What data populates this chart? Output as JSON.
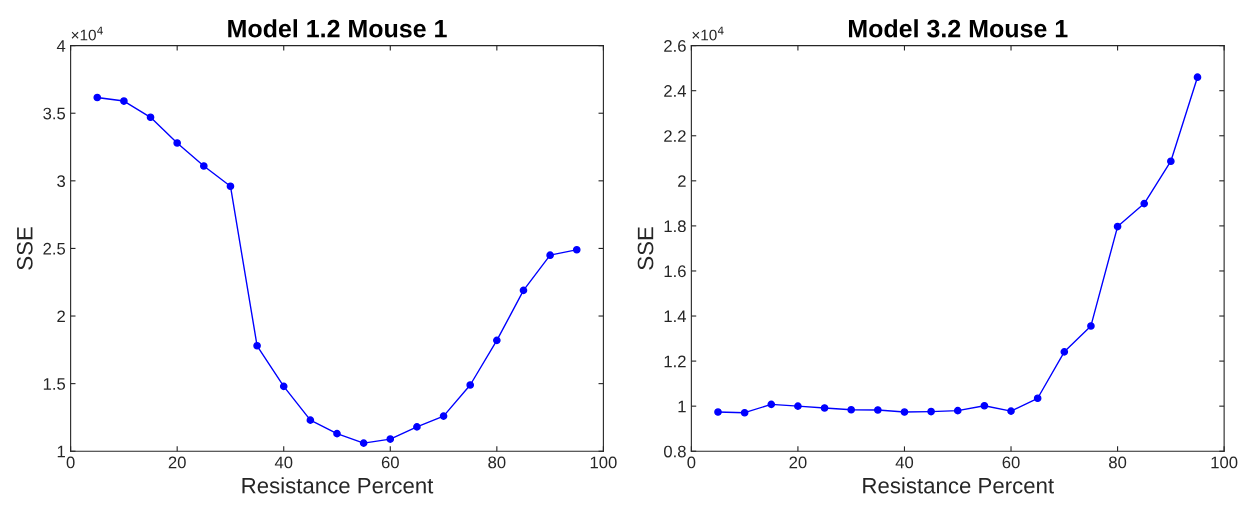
{
  "chart_data": [
    {
      "type": "line",
      "title": "Model 1.2 Mouse 1",
      "xlabel": "Resistance Percent",
      "ylabel": "SSE",
      "annotations": [
        "×10$^{4}$"
      ],
      "x": [
        5,
        10,
        15,
        20,
        25,
        30,
        35,
        40,
        45,
        50,
        55,
        60,
        65,
        70,
        75,
        80,
        85,
        90,
        95
      ],
      "series": [
        {
          "color": "#0000ff",
          "values": [
            3.616,
            3.59,
            3.47,
            3.28,
            3.11,
            2.96,
            1.78,
            1.48,
            1.23,
            1.13,
            1.06,
            1.09,
            1.18,
            1.26,
            1.49,
            1.82,
            2.19,
            2.45,
            2.49
          ]
        }
      ],
      "xlim": [
        0,
        100
      ],
      "xticks": [
        0,
        20,
        40,
        60,
        80,
        100
      ],
      "ylim": [
        1,
        4
      ],
      "yticks": [
        1,
        1.5,
        2,
        2.5,
        3,
        3.5,
        4
      ],
      "grid": false,
      "marker": "circle",
      "line_style": "solid"
    },
    {
      "type": "line",
      "title": "Model 3.2 Mouse 1",
      "xlabel": "Resistance Percent",
      "ylabel": "SSE",
      "annotations": [
        "×10$^{4}$"
      ],
      "x": [
        5,
        10,
        15,
        20,
        25,
        30,
        35,
        40,
        45,
        50,
        55,
        60,
        65,
        70,
        75,
        80,
        85,
        90,
        95
      ],
      "series": [
        {
          "color": "#0000ff",
          "values": [
            0.974,
            0.971,
            1.008,
            1.0,
            0.992,
            0.984,
            0.983,
            0.974,
            0.976,
            0.98,
            1.002,
            0.978,
            1.035,
            1.241,
            1.356,
            1.797,
            1.899,
            2.087,
            2.46
          ]
        }
      ],
      "xlim": [
        0,
        100
      ],
      "xticks": [
        0,
        20,
        40,
        60,
        80,
        100
      ],
      "ylim": [
        0.8,
        2.6
      ],
      "yticks": [
        0.8,
        1,
        1.2,
        1.4,
        1.6,
        1.8,
        2,
        2.2,
        2.4,
        2.6
      ],
      "grid": false,
      "marker": "circle",
      "line_style": "solid"
    }
  ]
}
